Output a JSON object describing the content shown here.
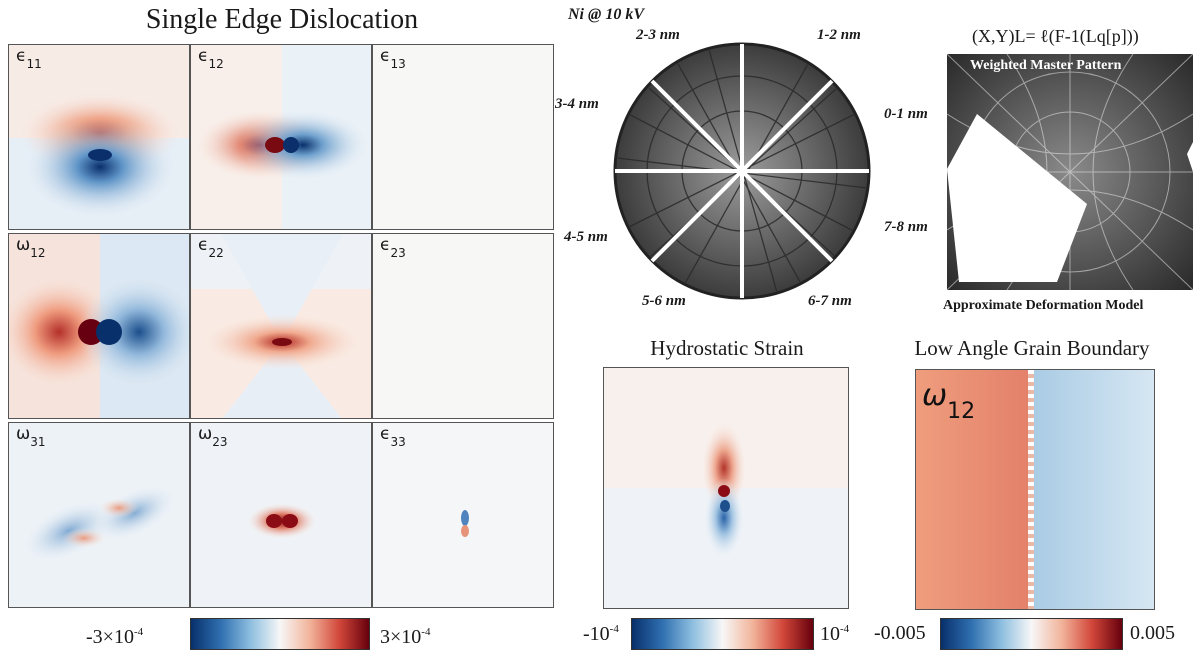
{
  "strain_section": {
    "title": "Single Edge Dislocation",
    "panels": [
      {
        "sym": "ϵ",
        "sub": "11"
      },
      {
        "sym": "ϵ",
        "sub": "12"
      },
      {
        "sym": "ϵ",
        "sub": "13"
      },
      {
        "sym": "ω",
        "sub": "12"
      },
      {
        "sym": "ϵ",
        "sub": "22"
      },
      {
        "sym": "ϵ",
        "sub": "23"
      },
      {
        "sym": "ω",
        "sub": "31"
      },
      {
        "sym": "ω",
        "sub": "23"
      },
      {
        "sym": "ϵ",
        "sub": "33"
      }
    ],
    "colorbar": {
      "min_mant": "-3×10",
      "min_exp": "-4",
      "max_mant": "3×10",
      "max_exp": "-4"
    }
  },
  "ebsd_section": {
    "material_label": "Ni @ 10 kV",
    "depth_labels": [
      "0-1 nm",
      "1-2 nm",
      "2-3 nm",
      "3-4 nm",
      "4-5 nm",
      "5-6 nm",
      "6-7 nm",
      "7-8 nm"
    ]
  },
  "master_pattern": {
    "formula": "(X,Y)L= ℓ(F-1(Lq[p]))",
    "top_label": "Weighted Master Pattern",
    "bottom_label": "Approximate Deformation Model"
  },
  "hydrostatic": {
    "title": "Hydrostatic Strain",
    "colorbar": {
      "min_mant": "-10",
      "min_exp": "-4",
      "max_mant": "10",
      "max_exp": "-4"
    }
  },
  "grain_boundary": {
    "title": "Low Angle Grain Boundary",
    "panel_label": {
      "sym": "ω",
      "sub": "12"
    },
    "colorbar": {
      "min": "-0.005",
      "max": "0.005"
    }
  },
  "colors": {
    "diverging_low": "#08306b",
    "diverging_mid": "#f7f7f7",
    "diverging_high": "#67000d",
    "panel_border": "#555555"
  }
}
